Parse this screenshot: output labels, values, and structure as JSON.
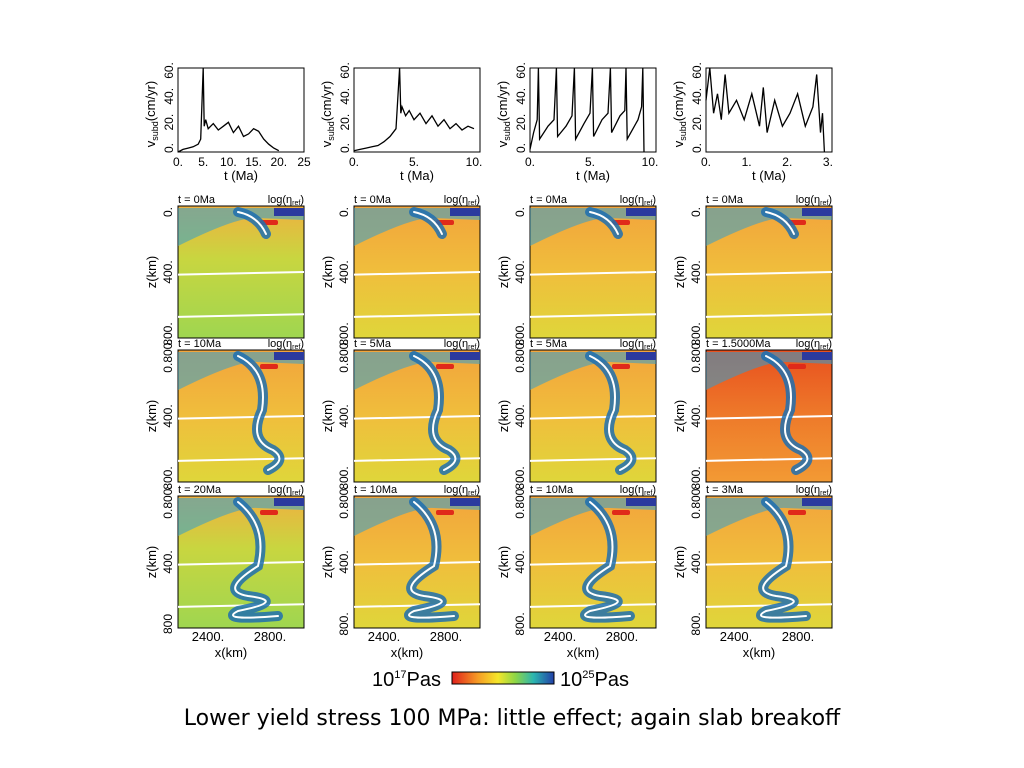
{
  "caption": "Lower yield stress 100 MPa: little effect; again slab breakoff",
  "colorbar": {
    "min_label": "10",
    "min_exp": "17",
    "max_label": "10",
    "max_exp": "25",
    "unit": "Pas"
  },
  "columns": [
    {
      "velocity_plot": {
        "ylabel_main": "v",
        "ylabel_sub": "subd",
        "ylabel_unit": "(cm/yr)",
        "xlabel": "t (Ma)",
        "y_ticks": [
          "0.",
          "20.",
          "40.",
          "60."
        ],
        "x_ticks": [
          "0.",
          "5.",
          "10.",
          "15.",
          "20.",
          "25"
        ],
        "chart_data": {
          "type": "line",
          "xlim": [
            0,
            25
          ],
          "ylim": [
            0,
            65
          ],
          "x": [
            0,
            1,
            2,
            3,
            4,
            4.5,
            5,
            5.2,
            5.5,
            6,
            7,
            8,
            9,
            10,
            11,
            12,
            13,
            14,
            15,
            16,
            17,
            18,
            19,
            20
          ],
          "y": [
            0,
            2,
            3,
            4,
            6,
            10,
            65,
            20,
            25,
            18,
            22,
            17,
            20,
            23,
            15,
            20,
            12,
            14,
            18,
            16,
            10,
            6,
            3,
            1
          ]
        }
      },
      "panels": [
        {
          "time": "t = 0Ma",
          "quantity": "log(η",
          "quantity_sub": "ref",
          "ylabel": "z(km)",
          "y_ticks": [
            "0.",
            "400.",
            "800."
          ]
        },
        {
          "time": "t = 10Ma",
          "quantity": "log(η",
          "quantity_sub": "ref",
          "ylabel": "z(km)",
          "y_ticks": [
            "0.800.",
            "400.",
            "800."
          ]
        },
        {
          "time": "t = 20Ma",
          "quantity": "log(η",
          "quantity_sub": "ref",
          "ylabel": "z(km)",
          "y_ticks": [
            "0.800.",
            "400.",
            "800"
          ]
        }
      ],
      "x_ticks": [
        "2400.",
        "2800."
      ],
      "xlabel": "x(km)"
    },
    {
      "velocity_plot": {
        "ylabel_main": "v",
        "ylabel_sub": "subd",
        "ylabel_unit": "(cm/yr)",
        "xlabel": "t (Ma)",
        "y_ticks": [
          "0.",
          "20.",
          "40.",
          "60."
        ],
        "x_ticks": [
          "0.",
          "5.",
          "10."
        ],
        "chart_data": {
          "type": "line",
          "xlim": [
            0,
            10.5
          ],
          "ylim": [
            0,
            65
          ],
          "x": [
            0,
            0.5,
            1,
            1.5,
            2,
            2.5,
            3,
            3.5,
            3.8,
            3.9,
            4,
            4.3,
            4.6,
            5,
            5.5,
            6,
            6.5,
            7,
            7.5,
            8,
            8.5,
            9,
            9.5,
            10
          ],
          "y": [
            1,
            2,
            3,
            4,
            5,
            8,
            12,
            18,
            65,
            30,
            35,
            28,
            32,
            25,
            30,
            22,
            28,
            20,
            25,
            18,
            22,
            17,
            20,
            18
          ]
        }
      },
      "panels": [
        {
          "time": "t = 0Ma",
          "quantity": "log(η",
          "quantity_sub": "ref",
          "ylabel": "z(km)",
          "y_ticks": [
            "0.",
            "400.",
            "800."
          ]
        },
        {
          "time": "t = 5Ma",
          "quantity": "log(η",
          "quantity_sub": "ref",
          "ylabel": "z(km)",
          "y_ticks": [
            "0.800.",
            "400.",
            "800."
          ]
        },
        {
          "time": "t = 10Ma",
          "quantity": "log(η",
          "quantity_sub": "ref",
          "ylabel": "z(km)",
          "y_ticks": [
            "0.800.",
            "400.",
            "800."
          ]
        }
      ],
      "x_ticks": [
        "2400.",
        "2800."
      ],
      "xlabel": "x(km)"
    },
    {
      "velocity_plot": {
        "ylabel_main": "v",
        "ylabel_sub": "subd",
        "ylabel_unit": "(cm/yr)",
        "xlabel": "t (Ma)",
        "y_ticks": [
          "0.",
          "20.",
          "40.",
          "60."
        ],
        "x_ticks": [
          "0.",
          "5.",
          "10."
        ],
        "chart_data": {
          "type": "line",
          "xlim": [
            0,
            10.5
          ],
          "ylim": [
            0,
            65
          ],
          "x": [
            0,
            0.3,
            0.6,
            0.7,
            0.8,
            1.5,
            2,
            2.2,
            2.3,
            3,
            3.5,
            3.7,
            3.8,
            4.5,
            5,
            5.2,
            5.3,
            6,
            6.5,
            6.7,
            6.8,
            7.5,
            7.9,
            8,
            8.1,
            9,
            9.3,
            9.4,
            9.5
          ],
          "y": [
            2,
            15,
            25,
            65,
            10,
            20,
            25,
            65,
            12,
            20,
            28,
            65,
            10,
            22,
            30,
            65,
            12,
            25,
            30,
            65,
            15,
            28,
            32,
            65,
            10,
            25,
            35,
            65,
            0
          ]
        }
      },
      "panels": [
        {
          "time": "t = 0Ma",
          "quantity": "log(η",
          "quantity_sub": "ref",
          "ylabel": "z(km)",
          "y_ticks": [
            "0.",
            "400.",
            "800."
          ]
        },
        {
          "time": "t = 5Ma",
          "quantity": "log(η",
          "quantity_sub": "ref",
          "ylabel": "z(km)",
          "y_ticks": [
            "0.800.",
            "400.",
            "800."
          ]
        },
        {
          "time": "t = 10Ma",
          "quantity": "log(η",
          "quantity_sub": "ref",
          "ylabel": "z(km)",
          "y_ticks": [
            "0.800.",
            "400.",
            "800."
          ]
        }
      ],
      "x_ticks": [
        "2400.",
        "2800."
      ],
      "xlabel": "x(km)"
    },
    {
      "velocity_plot": {
        "ylabel_main": "v",
        "ylabel_sub": "subd",
        "ylabel_unit": "(cm/yr)",
        "xlabel": "t (Ma)",
        "y_ticks": [
          "0.",
          "20.",
          "40.",
          "60."
        ],
        "x_ticks": [
          "0.",
          "1.",
          "2.",
          "3."
        ],
        "chart_data": {
          "type": "line",
          "xlim": [
            0,
            3.3
          ],
          "ylim": [
            0,
            65
          ],
          "x": [
            0,
            0.1,
            0.2,
            0.3,
            0.4,
            0.5,
            0.6,
            0.8,
            1.0,
            1.2,
            1.4,
            1.5,
            1.6,
            1.8,
            2.0,
            2.2,
            2.4,
            2.6,
            2.8,
            2.9,
            3.0,
            3.05,
            3.1
          ],
          "y": [
            40,
            65,
            30,
            45,
            25,
            60,
            30,
            40,
            25,
            45,
            20,
            50,
            15,
            40,
            20,
            30,
            45,
            20,
            35,
            60,
            15,
            30,
            0
          ]
        }
      },
      "panels": [
        {
          "time": "t = 0Ma",
          "quantity": "log(η",
          "quantity_sub": "ref",
          "ylabel": "z(km)",
          "y_ticks": [
            "0.",
            "400.",
            "800."
          ]
        },
        {
          "time": "t = 1.5000Ma",
          "quantity": "log(η",
          "quantity_sub": "ref",
          "ylabel": "z(km)",
          "y_ticks": [
            "0.800.",
            "400.",
            "800."
          ]
        },
        {
          "time": "t = 3Ma",
          "quantity": "log(η",
          "quantity_sub": "ref",
          "ylabel": "z(km)",
          "y_ticks": [
            "0.800.",
            "400.",
            "800."
          ]
        }
      ],
      "x_ticks": [
        "2400.",
        "2800."
      ],
      "xlabel": "x(km)"
    }
  ]
}
